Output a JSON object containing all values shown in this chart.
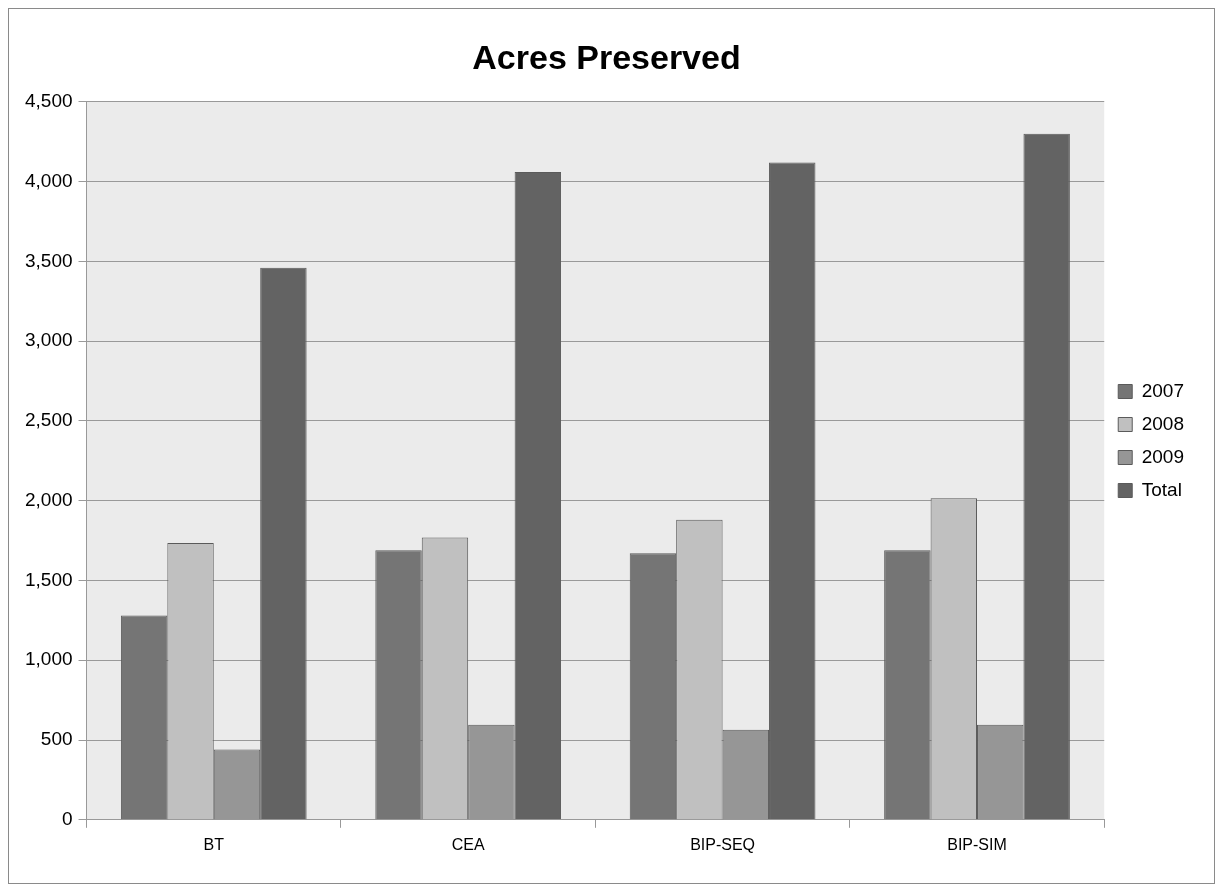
{
  "chart_data": {
    "type": "bar",
    "title": "Acres Preserved",
    "categories": [
      "BT",
      "CEA",
      "BIP-SEQ",
      "BIP-SIM"
    ],
    "series": [
      {
        "name": "2007",
        "color": "#757575",
        "values": [
          1280,
          1690,
          1670,
          1690
        ]
      },
      {
        "name": "2008",
        "color": "#c0c0c0",
        "values": [
          1735,
          1770,
          1880,
          2015
        ]
      },
      {
        "name": "2009",
        "color": "#969696",
        "values": [
          440,
          595,
          565,
          595
        ]
      },
      {
        "name": "Total",
        "color": "#636363",
        "values": [
          3460,
          4060,
          4120,
          4300
        ]
      }
    ],
    "ylim": [
      0,
      4500
    ],
    "yticks": [
      {
        "value": 0,
        "label": "0"
      },
      {
        "value": 500,
        "label": "500"
      },
      {
        "value": 1000,
        "label": "1,000"
      },
      {
        "value": 1500,
        "label": "1,500"
      },
      {
        "value": 2000,
        "label": "2,000"
      },
      {
        "value": 2500,
        "label": "2,500"
      },
      {
        "value": 3000,
        "label": "3,000"
      },
      {
        "value": 3500,
        "label": "3,500"
      },
      {
        "value": 4000,
        "label": "4,000"
      },
      {
        "value": 4500,
        "label": "4,500"
      }
    ],
    "grid": "y",
    "legend": "right"
  }
}
